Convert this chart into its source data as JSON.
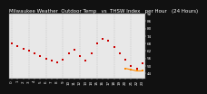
{
  "title": "Milwaukee Weather  Outdoor Temp   vs  THSW Index   per Hour   (24 Hours)",
  "hours": [
    0,
    1,
    2,
    3,
    4,
    5,
    6,
    7,
    8,
    9,
    10,
    11,
    12,
    13,
    14,
    15,
    16,
    17,
    18,
    19,
    20,
    21,
    22,
    23
  ],
  "temp": [
    68,
    66,
    64,
    62,
    60,
    58,
    56,
    54,
    53,
    55,
    60,
    63,
    58,
    54,
    60,
    68,
    72,
    70,
    65,
    60,
    55,
    50,
    48,
    52
  ],
  "thsw": [
    null,
    null,
    null,
    null,
    null,
    null,
    null,
    null,
    null,
    null,
    null,
    null,
    null,
    null,
    null,
    null,
    null,
    null,
    null,
    null,
    48,
    47,
    46,
    46
  ],
  "temp_color": "#cc0000",
  "thsw_color": "#ff8800",
  "bg_color": "#111111",
  "plot_bg_color": "#e8e8e8",
  "grid_color": "#aaaaaa",
  "ylim_min": 40,
  "ylim_max": 92,
  "yticks": [
    44,
    50,
    56,
    62,
    68,
    74,
    80,
    86,
    92
  ],
  "ytick_labels": [
    "44",
    "50",
    "56",
    "62",
    "68",
    "74",
    "80",
    "86",
    "92"
  ],
  "title_fontsize": 4.0,
  "tick_fontsize": 3.0,
  "title_color": "#ffffff",
  "tick_color": "#ffffff"
}
